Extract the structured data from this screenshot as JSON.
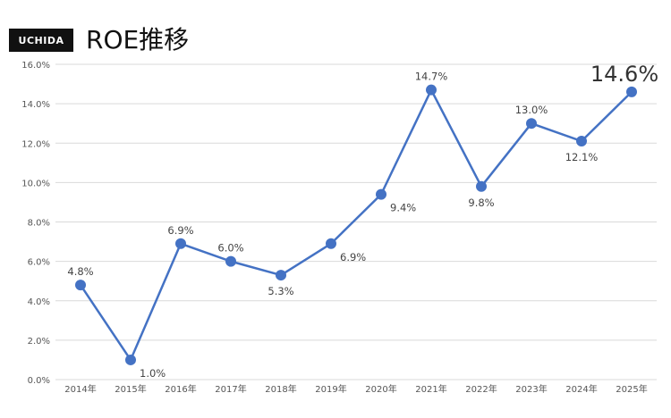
{
  "header": {
    "logo_text": "UCHIDA",
    "title": "ROE推移"
  },
  "chart_data": {
    "type": "line",
    "title": "ROE推移",
    "xlabel": "",
    "ylabel": "",
    "categories": [
      "2014年",
      "2015年",
      "2016年",
      "2017年",
      "2018年",
      "2019年",
      "2020年",
      "2021年",
      "2022年",
      "2023年",
      "2024年",
      "2025年"
    ],
    "series": [
      {
        "values": [
          4.8,
          1.0,
          6.9,
          6.0,
          5.3,
          6.9,
          9.4,
          14.7,
          9.8,
          13.0,
          12.1,
          14.6
        ]
      }
    ],
    "data_labels": [
      "4.8%",
      "1.0%",
      "6.9%",
      "6.0%",
      "5.3%",
      "6.9%",
      "9.4%",
      "14.7%",
      "9.8%",
      "13.0%",
      "12.1%",
      "14.6%"
    ],
    "y_ticks": [
      "0.0%",
      "2.0%",
      "4.0%",
      "6.0%",
      "8.0%",
      "10.0%",
      "12.0%",
      "14.0%",
      "16.0%"
    ],
    "ylim": [
      0,
      16
    ],
    "grid": true,
    "line_color": "#4472C4",
    "grid_color": "#D9D9D9"
  }
}
